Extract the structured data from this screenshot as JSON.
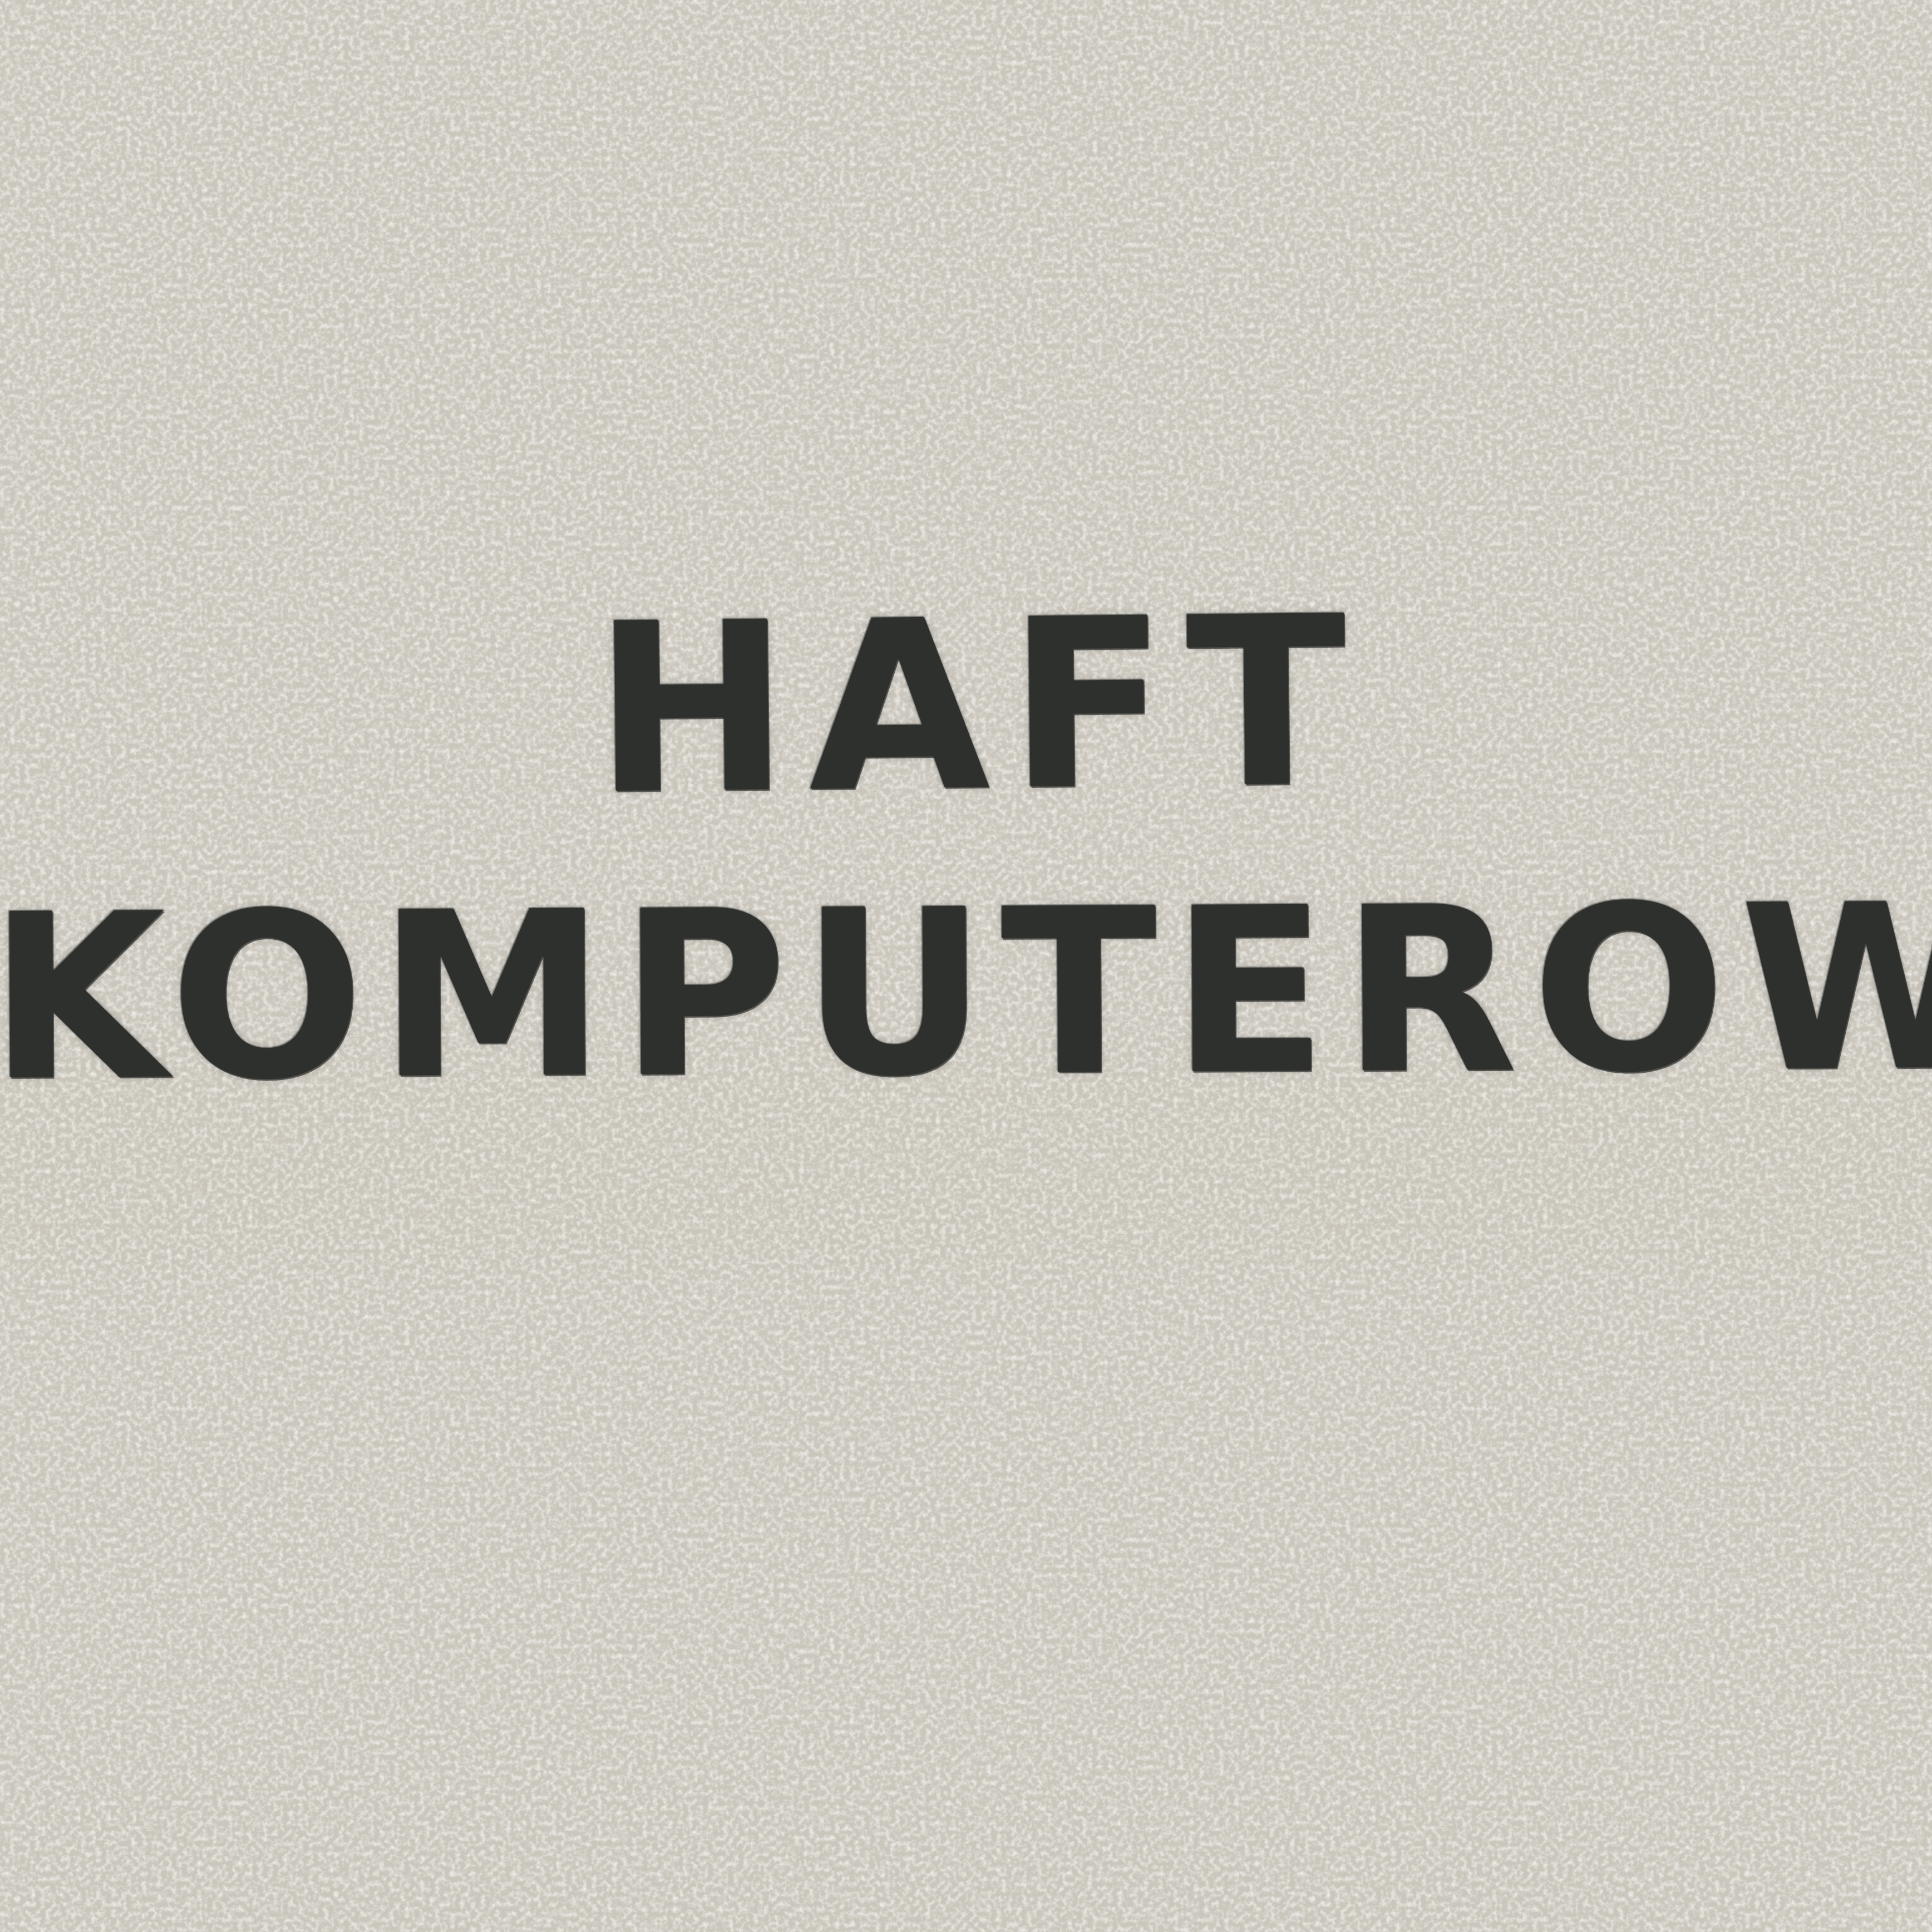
{
  "image": {
    "fabric_color": "#d2cfc6",
    "fabric_shadow_color": "#b9b3a6",
    "fabric_highlight_color": "#ebe8e1",
    "band_color": "#c8c1b0",
    "thread_color": "#2e302d"
  },
  "embroidery": {
    "line_1": "HAFT",
    "line_2": "KOMPUTEROWY"
  }
}
